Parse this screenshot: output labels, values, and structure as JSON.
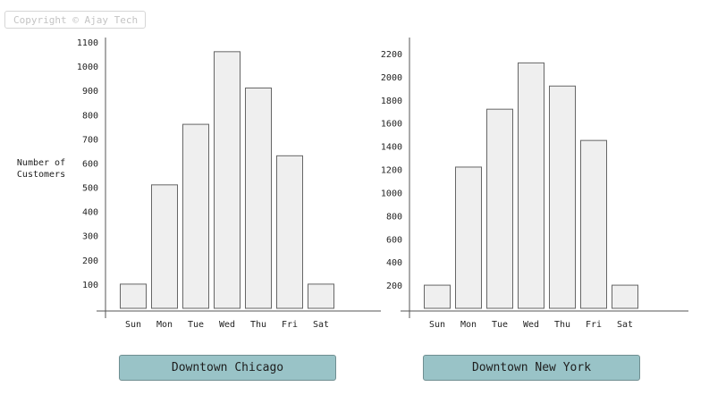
{
  "copyright": "Copyright © Ajay Tech",
  "ylabel": "Number of Customers",
  "chart_data": [
    {
      "type": "bar",
      "title": "Downtown Chicago",
      "categories": [
        "Sun",
        "Mon",
        "Tue",
        "Wed",
        "Thu",
        "Fri",
        "Sat"
      ],
      "values": [
        100,
        510,
        760,
        1060,
        910,
        630,
        100
      ],
      "ylabel": "Number of Customers",
      "yticks": [
        100,
        200,
        300,
        400,
        500,
        600,
        700,
        800,
        900,
        1000,
        1100
      ],
      "ylim": [
        0,
        1100
      ],
      "grid": false,
      "bar_color": "#efefef",
      "edge_color": "#666666"
    },
    {
      "type": "bar",
      "title": "Downtown New York",
      "categories": [
        "Sun",
        "Mon",
        "Tue",
        "Wed",
        "Thu",
        "Fri",
        "Sat"
      ],
      "values": [
        200,
        1220,
        1720,
        2120,
        1920,
        1450,
        200
      ],
      "ylabel": "",
      "yticks": [
        200,
        400,
        600,
        800,
        1000,
        1200,
        1400,
        1600,
        1800,
        2000,
        2200
      ],
      "ylim": [
        0,
        2200
      ],
      "grid": false,
      "bar_color": "#efefef",
      "edge_color": "#666666"
    }
  ]
}
